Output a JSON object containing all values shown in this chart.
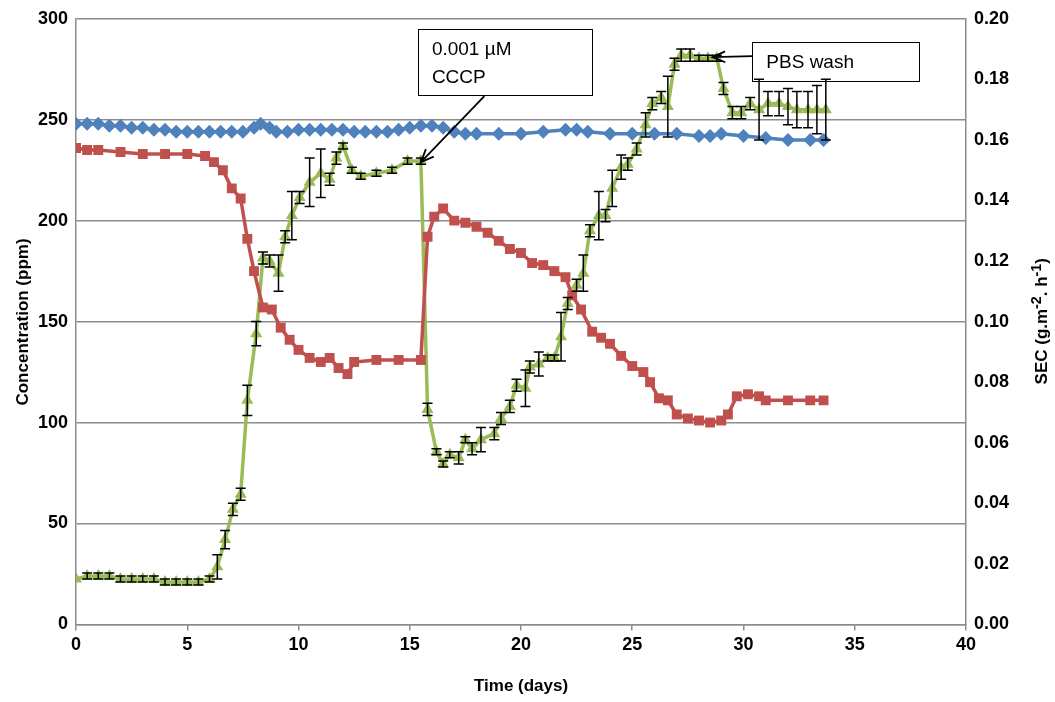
{
  "chart_data": {
    "type": "line",
    "xlabel": "Time (days)",
    "ylabel": "Concentration (ppm)",
    "y2label": "SEC (g.m$^{-2}$. h$^{-1}$)",
    "xlim": [
      0,
      40
    ],
    "xticks": [
      0,
      5,
      10,
      15,
      20,
      25,
      30,
      35,
      40
    ],
    "ylim": [
      0,
      300
    ],
    "yticks": [
      0,
      50,
      100,
      150,
      200,
      250,
      300
    ],
    "y2lim": [
      0,
      0.2
    ],
    "y2ticks": [
      {
        "value": 0,
        "label": "0.00"
      },
      {
        "value": 0.02,
        "label": "0.02"
      },
      {
        "value": 0.04,
        "label": "0.04"
      },
      {
        "value": 0.06,
        "label": "0.06"
      },
      {
        "value": 0.08,
        "label": "0.08"
      },
      {
        "value": 0.1,
        "label": "0.10"
      },
      {
        "value": 0.12,
        "label": "0.12"
      },
      {
        "value": 0.14,
        "label": "0.14"
      },
      {
        "value": 0.16,
        "label": "0.16"
      },
      {
        "value": 0.18,
        "label": "0.18"
      },
      {
        "value": 0.2,
        "label": "0.20"
      }
    ],
    "grid": "y",
    "legend": false,
    "line_style": "solid",
    "annotations": [
      {
        "text": "0.001 µM\nCCCP",
        "x": 15.5,
        "y": 229
      },
      {
        "text": "PBS wash",
        "x": 28.6,
        "y": 281
      }
    ],
    "series": [
      {
        "color": "#4f81bd",
        "marker": "diamond",
        "x": [
          0,
          0.5,
          1,
          1.5,
          2,
          2.5,
          3,
          3.5,
          4,
          4.5,
          5,
          5.5,
          6,
          6.5,
          7,
          7.5,
          8,
          8.3,
          8.7,
          9,
          9.5,
          10,
          10.5,
          11,
          11.5,
          12,
          12.5,
          13,
          13.5,
          14,
          14.5,
          15,
          15.5,
          16,
          16.5,
          17,
          17.5,
          18,
          19,
          20,
          21,
          22,
          22.5,
          23,
          24,
          25,
          26,
          27,
          28,
          28.5,
          29,
          30,
          31,
          32,
          33,
          33.6
        ],
        "values": [
          248,
          248,
          248,
          247,
          247,
          246,
          246,
          245,
          245,
          244,
          244,
          244,
          244,
          244,
          244,
          244,
          246,
          248,
          246,
          244,
          244,
          245,
          245,
          245,
          245,
          245,
          244,
          244,
          244,
          244,
          245,
          246,
          247,
          247,
          246,
          244,
          243,
          243,
          243,
          243,
          244,
          245,
          245,
          244,
          243,
          243,
          243,
          243,
          242,
          242,
          243,
          242,
          241,
          240,
          240,
          240
        ]
      },
      {
        "color": "#c0504d",
        "marker": "square",
        "x": [
          0,
          0.5,
          1,
          2,
          3,
          4,
          5,
          5.8,
          6.2,
          6.6,
          7,
          7.4,
          7.7,
          8,
          8.4,
          8.8,
          9.2,
          9.6,
          10,
          10.5,
          11,
          11.4,
          11.8,
          12.2,
          12.5,
          13.5,
          14.5,
          15.5,
          15.8,
          16.1,
          16.5,
          17,
          17.5,
          18,
          18.5,
          19,
          19.5,
          20,
          20.5,
          21,
          21.5,
          22,
          22.3,
          22.7,
          23.2,
          23.6,
          24,
          24.5,
          25,
          25.5,
          25.8,
          26.2,
          26.6,
          27,
          27.5,
          28,
          28.5,
          29,
          29.3,
          29.7,
          30.2,
          30.7,
          31,
          32,
          33,
          33.6
        ],
        "values": [
          236,
          235,
          235,
          234,
          233,
          233,
          233,
          232,
          229,
          225,
          216,
          211,
          191,
          175,
          157,
          156,
          147,
          141,
          136,
          132,
          130,
          132,
          127,
          124,
          130,
          131,
          131,
          131,
          192,
          202,
          206,
          200,
          199,
          197,
          194,
          190,
          186,
          184,
          179,
          178,
          175,
          172,
          163,
          156,
          145,
          142,
          139,
          133,
          128,
          125,
          120,
          112,
          111,
          104,
          102,
          101,
          100,
          101,
          104,
          113,
          114,
          113,
          111,
          111,
          111,
          111
        ]
      },
      {
        "color": "#9bbb59",
        "marker": "triangle",
        "axis": "y2",
        "x": [
          0,
          0.5,
          1,
          1.5,
          2,
          2.5,
          3,
          3.5,
          4,
          4.5,
          5,
          5.5,
          6,
          6.35,
          6.7,
          7.05,
          7.4,
          7.7,
          8.1,
          8.4,
          8.7,
          9.1,
          9.4,
          9.7,
          10.05,
          10.5,
          11,
          11.4,
          11.7,
          12,
          12.4,
          12.8,
          13.5,
          14.2,
          14.9,
          15.5,
          15.8,
          16.2,
          16.5,
          16.8,
          17.2,
          17.5,
          17.8,
          18.2,
          18.8,
          19.1,
          19.5,
          19.8,
          20.2,
          20.4,
          20.8,
          21.2,
          21.5,
          21.8,
          22.1,
          22.5,
          22.8,
          23.1,
          23.5,
          23.8,
          24.1,
          24.5,
          24.8,
          25.2,
          25.6,
          25.9,
          26.3,
          26.6,
          26.9,
          27.2,
          27.6,
          28,
          28.4,
          28.8,
          29.1,
          29.5,
          29.9,
          30.3,
          30.7,
          31.1,
          31.6,
          32,
          32.4,
          32.9,
          33.3,
          33.7
        ],
        "values": [
          0.015,
          0.016,
          0.016,
          0.016,
          0.015,
          0.015,
          0.015,
          0.015,
          0.014,
          0.014,
          0.014,
          0.014,
          0.015,
          0.019,
          0.028,
          0.038,
          0.043,
          0.074,
          0.096,
          0.121,
          0.12,
          0.116,
          0.128,
          0.135,
          0.141,
          0.146,
          0.149,
          0.147,
          0.154,
          0.158,
          0.15,
          0.148,
          0.149,
          0.15,
          0.153,
          0.153,
          0.071,
          0.057,
          0.053,
          0.056,
          0.055,
          0.061,
          0.058,
          0.061,
          0.063,
          0.068,
          0.072,
          0.079,
          0.078,
          0.085,
          0.086,
          0.088,
          0.088,
          0.095,
          0.106,
          0.112,
          0.116,
          0.13,
          0.135,
          0.135,
          0.144,
          0.151,
          0.152,
          0.157,
          0.165,
          0.172,
          0.174,
          0.171,
          0.185,
          0.188,
          0.188,
          0.187,
          0.187,
          0.187,
          0.177,
          0.169,
          0.169,
          0.172,
          0.17,
          0.172,
          0.172,
          0.171,
          0.17,
          0.17,
          0.17,
          0.17
        ],
        "errors": [
          null,
          0.001,
          0.001,
          0.001,
          0.001,
          0.001,
          0.001,
          0.001,
          0.001,
          0.001,
          0.001,
          0.001,
          0.001,
          0.004,
          0.003,
          0.002,
          0.002,
          0.005,
          0.004,
          0.002,
          0.002,
          0.006,
          0.002,
          0.008,
          0.002,
          0.008,
          0.008,
          0.002,
          0.002,
          0.001,
          0.001,
          0.001,
          0.001,
          0.001,
          0.001,
          0.001,
          0.002,
          0.001,
          0.001,
          0.001,
          0.002,
          0.001,
          0.002,
          0.004,
          0.002,
          0.002,
          0.002,
          0.002,
          0.006,
          0.002,
          0.004,
          0.001,
          0.001,
          0.008,
          0.002,
          0.002,
          0.006,
          0.002,
          0.008,
          0.002,
          0.006,
          0.004,
          0.002,
          0.002,
          0.004,
          0.002,
          0.002,
          0.01,
          0.002,
          0.002,
          0.002,
          0.001,
          0.001,
          0.001,
          0.002,
          0.002,
          0.002,
          0.002,
          0.01,
          0.004,
          0.004,
          0.006,
          0.006,
          0.006,
          0.008,
          0.01
        ]
      }
    ]
  }
}
